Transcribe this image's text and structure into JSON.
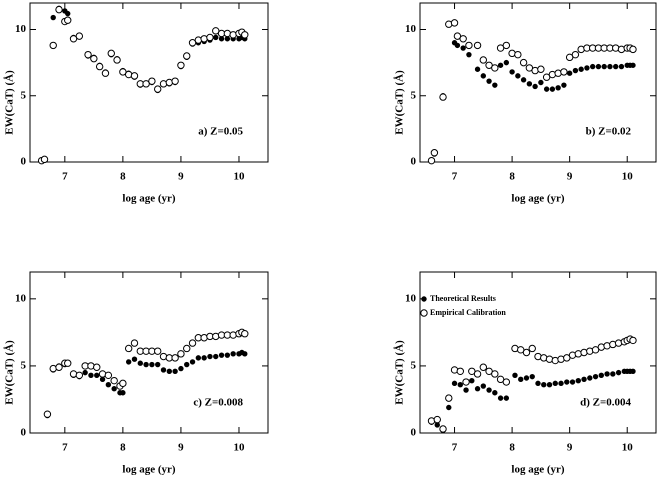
{
  "chart_data": [
    {
      "type": "scatter",
      "xlabel": "log age (yr)",
      "ylabel": "EW(CaT) (Å)",
      "annotation": "a) Z=0.05",
      "xlim": [
        6.4,
        10.5
      ],
      "ylim": [
        0,
        12
      ],
      "xticks": [
        7,
        8,
        9,
        10
      ],
      "yticks": [
        0,
        5,
        10
      ],
      "x": [
        6.6,
        6.65,
        6.8,
        6.9,
        7.0,
        7.05,
        7.15,
        7.25,
        7.4,
        7.5,
        7.6,
        7.7,
        7.8,
        7.9,
        8.0,
        8.1,
        8.2,
        8.3,
        8.4,
        8.5,
        8.6,
        8.7,
        8.8,
        8.9,
        9.0,
        9.1,
        9.2,
        9.3,
        9.4,
        9.5,
        9.6,
        9.7,
        9.8,
        9.9,
        10.0,
        10.05,
        10.1
      ],
      "series": [
        {
          "marker": "filled",
          "color": "#000000",
          "values": [
            0.1,
            0.2,
            10.9,
            11.6,
            11.4,
            11.2,
            9.4,
            9.5,
            8.0,
            7.9,
            7.3,
            6.8,
            8.1,
            7.8,
            6.9,
            6.7,
            6.4,
            5.8,
            5.9,
            6.0,
            5.4,
            5.9,
            5.9,
            6.0,
            7.2,
            7.9,
            8.9,
            9.0,
            9.1,
            9.2,
            9.4,
            9.3,
            9.3,
            9.3,
            9.3,
            9.4,
            9.3
          ]
        },
        {
          "marker": "open",
          "color": "#000000",
          "values": [
            0.1,
            0.2,
            8.8,
            11.5,
            10.6,
            10.7,
            9.3,
            9.5,
            8.1,
            7.8,
            7.2,
            6.7,
            8.2,
            7.7,
            6.8,
            6.6,
            6.5,
            5.9,
            5.9,
            6.1,
            5.5,
            5.9,
            6.0,
            6.1,
            7.3,
            8.0,
            9.0,
            9.2,
            9.3,
            9.4,
            9.9,
            9.7,
            9.7,
            9.6,
            9.7,
            9.8,
            9.6
          ]
        }
      ]
    },
    {
      "type": "scatter",
      "xlabel": "log age (yr)",
      "ylabel": "EW(CaT) (Å)",
      "annotation": "b) Z=0.02",
      "xlim": [
        6.4,
        10.5
      ],
      "ylim": [
        0,
        12
      ],
      "xticks": [
        7,
        8,
        9,
        10
      ],
      "yticks": [
        0,
        5,
        10
      ],
      "x": [
        6.6,
        6.65,
        6.8,
        6.9,
        7.0,
        7.05,
        7.15,
        7.25,
        7.4,
        7.5,
        7.6,
        7.7,
        7.8,
        7.9,
        8.0,
        8.1,
        8.2,
        8.3,
        8.4,
        8.5,
        8.6,
        8.7,
        8.8,
        8.9,
        9.0,
        9.1,
        9.2,
        9.3,
        9.4,
        9.5,
        9.6,
        9.7,
        9.8,
        9.9,
        10.0,
        10.05,
        10.1
      ],
      "series": [
        {
          "marker": "filled",
          "color": "#000000",
          "values": [
            0.1,
            0.6,
            5.0,
            10.4,
            9.0,
            8.8,
            8.6,
            8.1,
            7.0,
            6.5,
            6.1,
            5.8,
            7.3,
            7.5,
            6.8,
            6.5,
            6.2,
            5.9,
            5.7,
            6.0,
            5.5,
            5.5,
            5.6,
            5.8,
            6.7,
            6.9,
            7.0,
            7.1,
            7.2,
            7.2,
            7.2,
            7.2,
            7.2,
            7.2,
            7.3,
            7.3,
            7.3
          ]
        },
        {
          "marker": "open",
          "color": "#000000",
          "values": [
            0.1,
            0.7,
            4.9,
            10.4,
            10.5,
            9.5,
            9.3,
            8.8,
            8.8,
            7.7,
            7.3,
            7.1,
            8.6,
            8.8,
            8.2,
            8.1,
            7.5,
            7.1,
            6.9,
            7.0,
            6.4,
            6.6,
            6.7,
            6.8,
            7.9,
            8.1,
            8.5,
            8.6,
            8.6,
            8.6,
            8.6,
            8.6,
            8.6,
            8.5,
            8.6,
            8.6,
            8.5
          ]
        }
      ]
    },
    {
      "type": "scatter",
      "xlabel": "log age (yr)",
      "ylabel": "EW(CaT) (Å)",
      "annotation": "c) Z=0.008",
      "xlim": [
        6.4,
        10.5
      ],
      "ylim": [
        0,
        12
      ],
      "xticks": [
        7,
        8,
        9,
        10
      ],
      "yticks": [
        0,
        5,
        10
      ],
      "x": [
        6.7,
        6.8,
        6.9,
        7.0,
        7.05,
        7.15,
        7.25,
        7.35,
        7.45,
        7.55,
        7.65,
        7.75,
        7.85,
        7.95,
        8.0,
        8.1,
        8.2,
        8.3,
        8.4,
        8.5,
        8.6,
        8.7,
        8.8,
        8.9,
        9.0,
        9.1,
        9.2,
        9.3,
        9.4,
        9.5,
        9.6,
        9.7,
        9.8,
        9.9,
        10.0,
        10.05,
        10.1
      ],
      "series": [
        {
          "marker": "filled",
          "color": "#000000",
          "values": [
            1.3,
            4.7,
            5.0,
            5.1,
            5.2,
            4.3,
            4.2,
            4.5,
            4.3,
            4.3,
            4.0,
            3.6,
            3.3,
            3.0,
            3.0,
            5.3,
            5.5,
            5.2,
            5.1,
            5.1,
            5.1,
            4.7,
            4.6,
            4.6,
            4.8,
            5.1,
            5.3,
            5.6,
            5.6,
            5.7,
            5.7,
            5.8,
            5.8,
            5.9,
            5.9,
            6.0,
            5.9
          ]
        },
        {
          "marker": "open",
          "color": "#000000",
          "values": [
            1.4,
            4.8,
            4.9,
            5.2,
            5.2,
            4.4,
            4.3,
            5.0,
            5.0,
            4.9,
            4.4,
            4.3,
            3.9,
            3.5,
            3.7,
            6.3,
            6.7,
            6.1,
            6.1,
            6.1,
            6.1,
            5.7,
            5.6,
            5.6,
            5.9,
            6.3,
            6.7,
            7.1,
            7.1,
            7.2,
            7.2,
            7.3,
            7.3,
            7.3,
            7.4,
            7.5,
            7.4
          ]
        }
      ]
    },
    {
      "type": "scatter",
      "xlabel": "log age (yr)",
      "ylabel": "EW(CaT) (Å)",
      "annotation": "d) Z=0.004",
      "legend": "upper left",
      "xlim": [
        6.4,
        10.5
      ],
      "ylim": [
        0,
        12
      ],
      "xticks": [
        7,
        8,
        9,
        10
      ],
      "yticks": [
        0,
        5,
        10
      ],
      "x": [
        6.6,
        6.7,
        6.8,
        6.9,
        7.0,
        7.1,
        7.2,
        7.3,
        7.4,
        7.5,
        7.6,
        7.7,
        7.8,
        7.9,
        8.05,
        8.15,
        8.25,
        8.35,
        8.45,
        8.55,
        8.65,
        8.75,
        8.85,
        8.95,
        9.05,
        9.15,
        9.25,
        9.35,
        9.45,
        9.55,
        9.65,
        9.75,
        9.85,
        9.95,
        10.0,
        10.05,
        10.1
      ],
      "series": [
        {
          "name": "Theoretical Results",
          "marker": "filled",
          "color": "#000000",
          "values": [
            0.8,
            0.6,
            0.2,
            1.9,
            3.7,
            3.6,
            3.2,
            3.9,
            3.3,
            3.5,
            3.2,
            3.0,
            2.6,
            2.6,
            4.3,
            4.0,
            4.1,
            4.2,
            3.7,
            3.6,
            3.6,
            3.7,
            3.7,
            3.8,
            3.8,
            3.9,
            4.0,
            4.1,
            4.2,
            4.3,
            4.4,
            4.4,
            4.5,
            4.6,
            4.6,
            4.6,
            4.6
          ]
        },
        {
          "name": "Empirical Calibration",
          "marker": "open",
          "color": "#000000",
          "values": [
            0.9,
            1.0,
            0.3,
            2.6,
            4.7,
            4.6,
            3.8,
            4.6,
            4.4,
            4.9,
            4.6,
            4.4,
            4.0,
            3.8,
            6.3,
            6.2,
            6.0,
            6.3,
            5.7,
            5.6,
            5.5,
            5.4,
            5.5,
            5.6,
            5.8,
            5.9,
            6.0,
            6.1,
            6.2,
            6.4,
            6.5,
            6.6,
            6.7,
            6.8,
            6.9,
            7.0,
            6.9
          ]
        }
      ]
    }
  ]
}
